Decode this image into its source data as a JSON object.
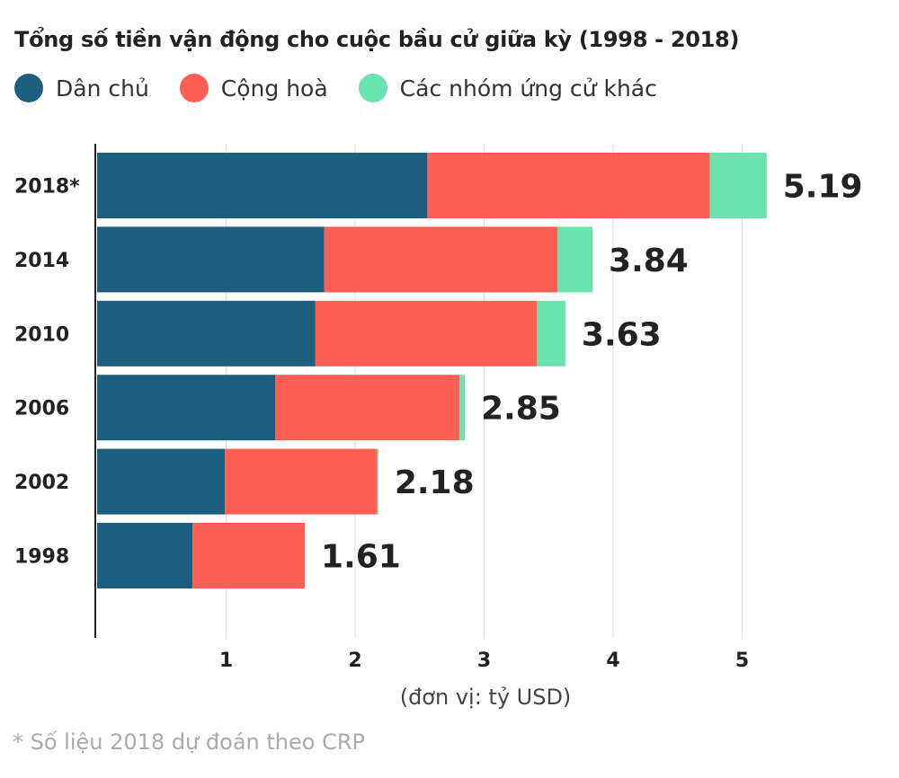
{
  "chart_data": {
    "type": "bar",
    "orientation": "horizontal",
    "stacked": true,
    "title": "Tổng số tiền vận động cho cuộc bầu cử giữa kỳ (1998 - 2018)",
    "xlabel": "(đơn vị: tỷ USD)",
    "ylabel": "",
    "xlim": [
      0,
      5.4
    ],
    "xticks": [
      "1",
      "2",
      "3",
      "4",
      "5"
    ],
    "grid": true,
    "legend_position": "top-left",
    "categories": [
      "2018*",
      "2014",
      "2010",
      "2006",
      "2002",
      "1998"
    ],
    "series": [
      {
        "name": "Dân chủ",
        "color": "#1b5e7e",
        "values": [
          2.56,
          1.76,
          1.69,
          1.38,
          0.99,
          0.74
        ]
      },
      {
        "name": "Cộng hoà",
        "color": "#fe5f55",
        "values": [
          2.19,
          1.81,
          1.72,
          1.43,
          1.18,
          0.87
        ]
      },
      {
        "name": "Các nhóm ứng cử khác",
        "color": "#69e4ae",
        "values": [
          0.44,
          0.27,
          0.22,
          0.04,
          0.01,
          0
        ]
      }
    ],
    "totals": [
      "5.19",
      "3.84",
      "3.63",
      "2.85",
      "2.18",
      "1.61"
    ],
    "footnote": "* Số liệu 2018 dự đoán theo CRP"
  }
}
